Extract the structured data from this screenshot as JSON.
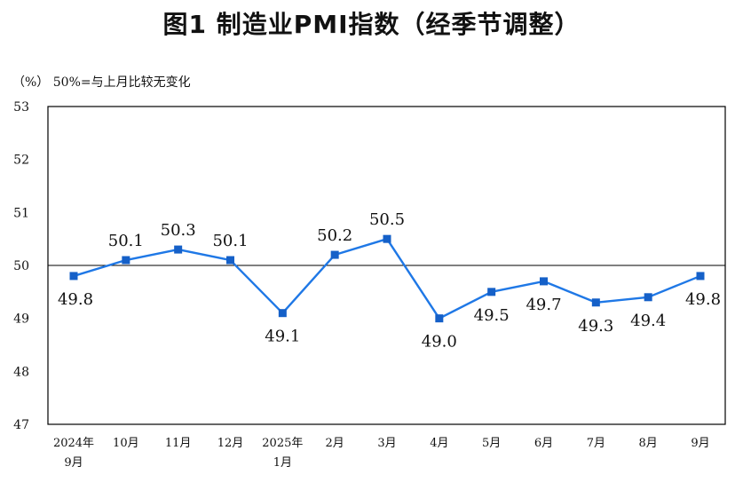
{
  "chart_data": {
    "type": "line",
    "title": "图1  制造业PMI指数（经季节调整）",
    "unit_note": "（%） 50%=与上月比较无变化",
    "categories": [
      [
        "2024年",
        "9月"
      ],
      [
        "10月"
      ],
      [
        "11月"
      ],
      [
        "12月"
      ],
      [
        "2025年",
        "1月"
      ],
      [
        "2月"
      ],
      [
        "3月"
      ],
      [
        "4月"
      ],
      [
        "5月"
      ],
      [
        "6月"
      ],
      [
        "7月"
      ],
      [
        "8月"
      ],
      [
        "9月"
      ]
    ],
    "series": [
      {
        "values": [
          49.8,
          50.1,
          50.3,
          50.1,
          49.1,
          50.2,
          50.5,
          49.0,
          49.5,
          49.7,
          49.3,
          49.4,
          49.8
        ],
        "labels": [
          "49.8",
          "50.1",
          "50.3",
          "50.1",
          "49.1",
          "50.2",
          "50.5",
          "49.0",
          "49.5",
          "49.7",
          "49.3",
          "49.4",
          "49.8"
        ],
        "label_pos": [
          "below",
          "above",
          "above",
          "above",
          "below",
          "above",
          "above",
          "below",
          "below",
          "below",
          "below",
          "below",
          "below"
        ]
      }
    ],
    "ylim": [
      47,
      53
    ],
    "yticks": [
      "47",
      "48",
      "49",
      "50",
      "51",
      "52",
      "53"
    ],
    "reference_line": 50,
    "line_color": "#1f78e6",
    "marker_color": "#1560c8",
    "grid": false
  }
}
